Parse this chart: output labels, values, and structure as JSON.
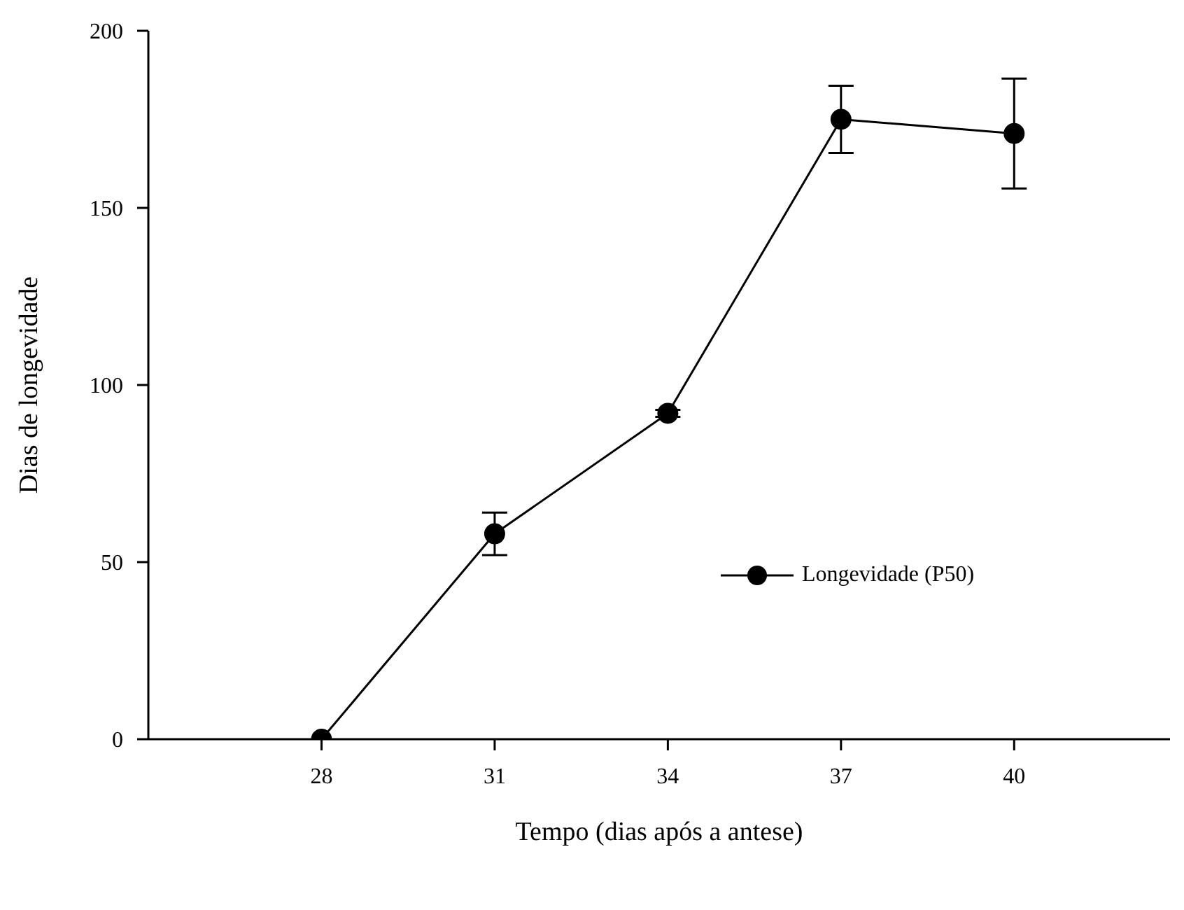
{
  "chart_data": {
    "type": "line",
    "xlabel": "Tempo (dias após a antese)",
    "ylabel": "Dias de longevidade",
    "x": [
      28,
      31,
      34,
      37,
      40
    ],
    "series": [
      {
        "name": "Longevidade (P50)",
        "color": "#000000",
        "values": [
          0,
          58,
          92,
          175,
          171
        ],
        "errors": [
          null,
          6,
          1,
          9.5,
          15.5
        ]
      }
    ],
    "xlim": [
      25,
      42.7
    ],
    "xticks": [
      28,
      31,
      34,
      37,
      40
    ],
    "ylim": [
      0,
      200
    ],
    "yticks": [
      0,
      50,
      100,
      150,
      200
    ],
    "grid": false,
    "legend": "right",
    "marker": "circle",
    "line_style": "solid"
  }
}
